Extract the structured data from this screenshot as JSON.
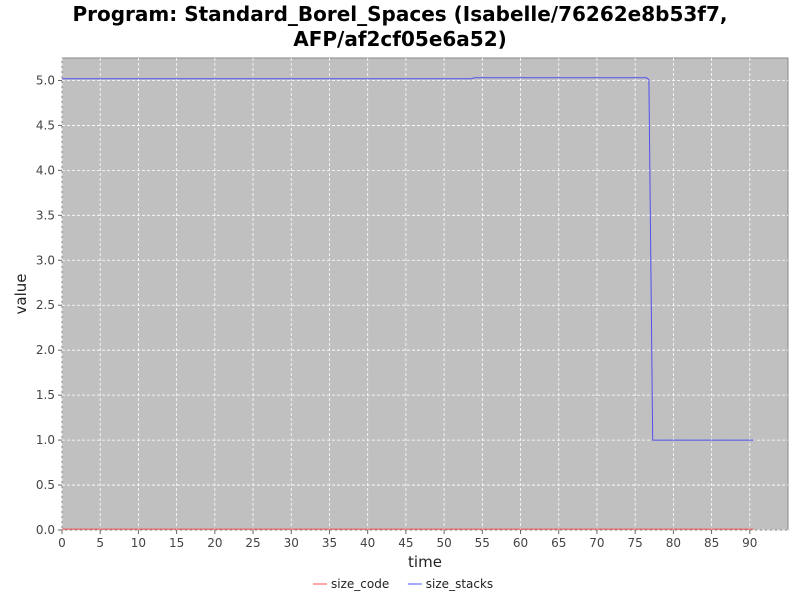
{
  "chart_data": {
    "type": "line",
    "title_line1": "Program: Standard_Borel_Spaces (Isabelle/76262e8b53f7,",
    "title_line2": "AFP/af2cf05e6a52)",
    "xlabel": "time",
    "ylabel": "value",
    "xlim": [
      0,
      95
    ],
    "ylim": [
      0,
      5.25
    ],
    "xticks": [
      0,
      5,
      10,
      15,
      20,
      25,
      30,
      35,
      40,
      45,
      50,
      55,
      60,
      65,
      70,
      75,
      80,
      85,
      90
    ],
    "yticks": [
      0.0,
      0.5,
      1.0,
      1.5,
      2.0,
      2.5,
      3.0,
      3.5,
      4.0,
      4.5,
      5.0
    ],
    "grid": true,
    "legend_position": "bottom-center",
    "plot_background": "#c0c0c0",
    "series": [
      {
        "name": "size_code",
        "color": "#f05050",
        "points": [
          [
            0,
            0.01
          ],
          [
            90.5,
            0.01
          ]
        ]
      },
      {
        "name": "size_stacks",
        "color": "#5050f0",
        "points": [
          [
            0,
            5.02
          ],
          [
            53.5,
            5.02
          ],
          [
            54,
            5.03
          ],
          [
            76.5,
            5.03
          ],
          [
            76.8,
            5.01
          ],
          [
            77.3,
            1.0
          ],
          [
            90.5,
            1.0
          ]
        ]
      }
    ]
  }
}
